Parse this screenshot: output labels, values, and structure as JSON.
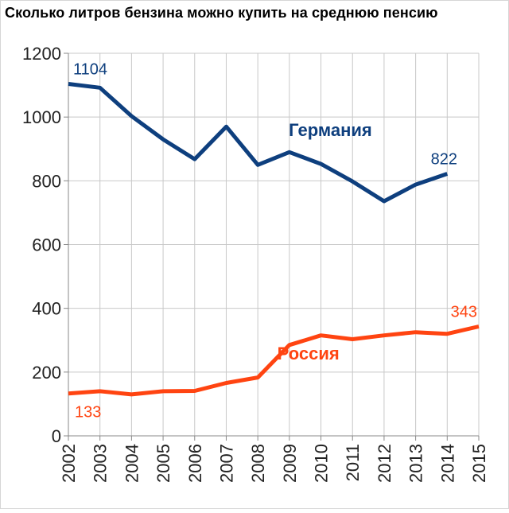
{
  "chart_data": {
    "type": "line",
    "title": "Сколько литров бензина можно купить на среднюю пенсию",
    "xlabel": "",
    "ylabel": "",
    "x": [
      2002,
      2003,
      2004,
      2005,
      2006,
      2007,
      2008,
      2009,
      2010,
      2011,
      2012,
      2013,
      2014,
      2015
    ],
    "x_tick_labels": [
      "2002",
      "2003",
      "2004",
      "2005",
      "2006",
      "2007",
      "2008",
      "2009",
      "2010",
      "2011",
      "2012",
      "2013",
      "2014",
      "2015"
    ],
    "ylim": [
      0,
      1200
    ],
    "y_ticks": [
      0,
      200,
      400,
      600,
      800,
      1000,
      1200
    ],
    "y_tick_labels": [
      "0",
      "200",
      "400",
      "600",
      "800",
      "1000",
      "1200"
    ],
    "grid": true,
    "series": [
      {
        "name": "Германия",
        "color": "#0e3f7e",
        "x": [
          2002,
          2003,
          2004,
          2005,
          2006,
          2007,
          2008,
          2009,
          2010,
          2011,
          2012,
          2013,
          2014
        ],
        "values": [
          1104,
          1092,
          1003,
          930,
          868,
          970,
          850,
          890,
          853,
          798,
          736,
          788,
          822
        ]
      },
      {
        "name": "Россия",
        "color": "#ff4411",
        "x": [
          2002,
          2003,
          2004,
          2005,
          2006,
          2007,
          2008,
          2009,
          2010,
          2011,
          2012,
          2013,
          2014,
          2015
        ],
        "values": [
          133,
          140,
          130,
          140,
          141,
          166,
          183,
          285,
          315,
          303,
          315,
          325,
          320,
          343
        ]
      }
    ],
    "data_labels": [
      {
        "series": 0,
        "index": 0,
        "text": "1104",
        "placement": "above-right"
      },
      {
        "series": 0,
        "index": 12,
        "text": "822",
        "placement": "above"
      },
      {
        "series": 1,
        "index": 0,
        "text": "133",
        "placement": "below-right"
      },
      {
        "series": 1,
        "index": 13,
        "text": "343",
        "placement": "above-left"
      }
    ],
    "annotations": [
      {
        "text": "Германия",
        "series": 0,
        "anchor": {
          "x": 2010.3,
          "y": 940
        }
      },
      {
        "text": "Россия",
        "series": 1,
        "anchor": {
          "x": 2009.6,
          "y": 240
        }
      }
    ]
  }
}
